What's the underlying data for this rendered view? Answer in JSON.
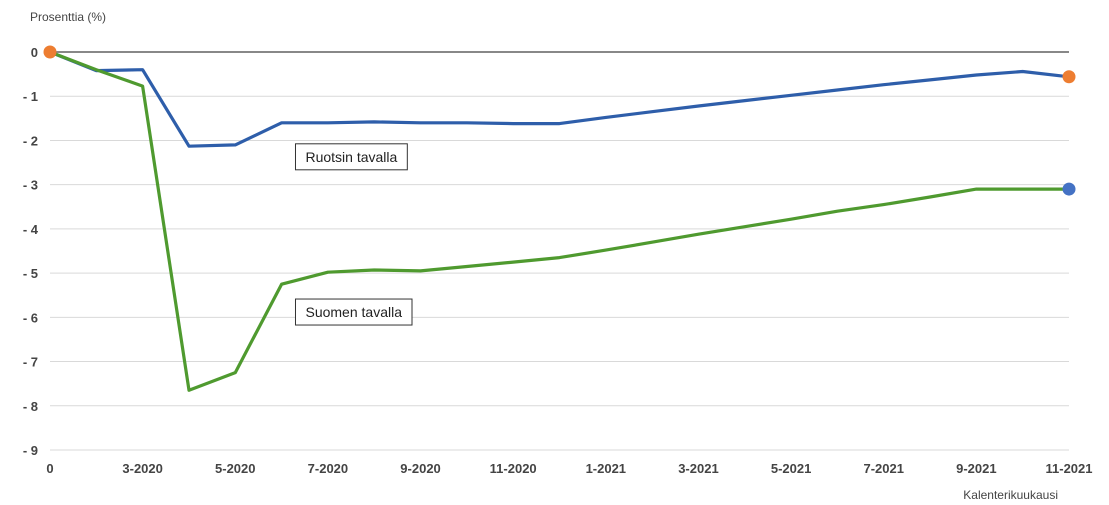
{
  "chart_data": {
    "type": "line",
    "ylabel": "Prosenttia (%)",
    "xlabel": "Kalenterikuukausi",
    "x_ticks": [
      {
        "x": 0,
        "label": "0"
      },
      {
        "x": 2,
        "label": "3-2020"
      },
      {
        "x": 4,
        "label": "5-2020"
      },
      {
        "x": 6,
        "label": "7-2020"
      },
      {
        "x": 8,
        "label": "9-2020"
      },
      {
        "x": 10,
        "label": "11-2020"
      },
      {
        "x": 12,
        "label": "1-2021"
      },
      {
        "x": 14,
        "label": "3-2021"
      },
      {
        "x": 16,
        "label": "5-2021"
      },
      {
        "x": 18,
        "label": "7-2021"
      },
      {
        "x": 20,
        "label": "9-2021"
      },
      {
        "x": 22,
        "label": "11-2021"
      }
    ],
    "y_ticks": [
      {
        "v": 0,
        "label": "0"
      },
      {
        "v": -1,
        "label": "- 1"
      },
      {
        "v": -2,
        "label": "- 2"
      },
      {
        "v": -3,
        "label": "- 3"
      },
      {
        "v": -4,
        "label": "- 4"
      },
      {
        "v": -5,
        "label": "- 5"
      },
      {
        "v": -6,
        "label": "- 6"
      },
      {
        "v": -7,
        "label": "- 7"
      },
      {
        "v": -8,
        "label": "- 8"
      },
      {
        "v": -9,
        "label": "- 9"
      }
    ],
    "xlim": [
      0,
      22
    ],
    "ylim": [
      -9,
      0
    ],
    "grid": true,
    "series": [
      {
        "color": "#2e5eaa",
        "points": [
          [
            0,
            0
          ],
          [
            1,
            -0.42
          ],
          [
            2,
            -0.4
          ],
          [
            3,
            -2.13
          ],
          [
            4,
            -2.1
          ],
          [
            5,
            -1.6
          ],
          [
            6,
            -1.6
          ],
          [
            7,
            -1.58
          ],
          [
            8,
            -1.6
          ],
          [
            9,
            -1.6
          ],
          [
            10,
            -1.62
          ],
          [
            11,
            -1.62
          ],
          [
            12,
            -1.48
          ],
          [
            13,
            -1.35
          ],
          [
            14,
            -1.22
          ],
          [
            15,
            -1.1
          ],
          [
            16,
            -0.98
          ],
          [
            17,
            -0.86
          ],
          [
            18,
            -0.74
          ],
          [
            19,
            -0.63
          ],
          [
            20,
            -0.52
          ],
          [
            21,
            -0.44
          ],
          [
            22,
            -0.56
          ]
        ]
      },
      {
        "color": "#4f9a2f",
        "points": [
          [
            0,
            0
          ],
          [
            1,
            -0.4
          ],
          [
            2,
            -0.77
          ],
          [
            3,
            -7.65
          ],
          [
            4,
            -7.25
          ],
          [
            5,
            -5.25
          ],
          [
            6,
            -4.98
          ],
          [
            7,
            -4.93
          ],
          [
            8,
            -4.95
          ],
          [
            9,
            -4.85
          ],
          [
            10,
            -4.75
          ],
          [
            11,
            -4.65
          ],
          [
            12,
            -4.48
          ],
          [
            13,
            -4.3
          ],
          [
            14,
            -4.12
          ],
          [
            15,
            -3.95
          ],
          [
            16,
            -3.78
          ],
          [
            17,
            -3.6
          ],
          [
            18,
            -3.45
          ],
          [
            19,
            -3.28
          ],
          [
            20,
            -3.1
          ],
          [
            21,
            -3.1
          ],
          [
            22,
            -3.1
          ]
        ]
      }
    ],
    "endpoint_markers": [
      {
        "x": 0,
        "y": 0,
        "color": "#ed7d31"
      },
      {
        "x": 22,
        "y": -0.56,
        "color": "#ed7d31"
      },
      {
        "x": 22,
        "y": -3.1,
        "color": "#4472c4"
      }
    ],
    "annotations": [
      {
        "text": "Ruotsin tavalla",
        "x": 5.3,
        "y": -2.37
      },
      {
        "text": "Suomen tavalla",
        "x": 5.3,
        "y": -5.88
      }
    ],
    "colors": {
      "grid": "#d9d9d9",
      "zero_line": "#404040"
    }
  }
}
